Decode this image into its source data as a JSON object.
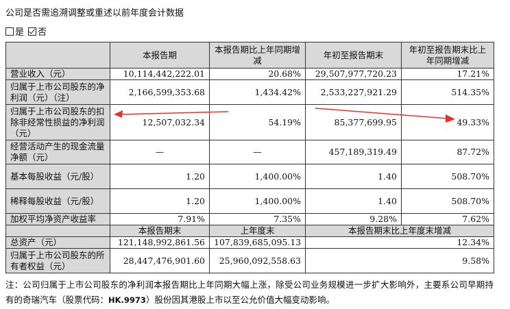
{
  "heading": "公司是否需追溯调整或重述以前年度会计数据",
  "options": {
    "yes_label": "是",
    "no_label": "否",
    "selected": "否"
  },
  "table1": {
    "headers": [
      "",
      "本报告期",
      "本报告期比上年同期增减",
      "年初至报告期末",
      "年初至报告期末比上年同期增减"
    ],
    "rows": [
      {
        "label": "营业收入（元）",
        "values": [
          "10,114,442,222.01",
          "20.68%",
          "29,507,977,720.23",
          "17.21%"
        ]
      },
      {
        "label": "归属于上市公司股东的净利润（元）（注）",
        "values": [
          "2,166,599,353.68",
          "1,434.42%",
          "2,533,227,921.29",
          "514.35%"
        ]
      },
      {
        "label": "归属于上市公司股东的扣除非经常性损益的净利润（元）",
        "values": [
          "12,507,032.34",
          "54.19%",
          "85,377,699.95",
          "49.33%"
        ]
      },
      {
        "label": "经营活动产生的现金流量净额（元）",
        "values": [
          "—",
          "—",
          "457,189,319.49",
          "87.72%"
        ]
      },
      {
        "label": "基本每股收益（元/股）",
        "values": [
          "1.20",
          "1,400.00%",
          "1.40",
          "508.70%"
        ]
      },
      {
        "label": "稀释每股收益（元/股）",
        "values": [
          "1.20",
          "1,400.00%",
          "1.40",
          "508.70%"
        ]
      },
      {
        "label": "加权平均净资产收益率",
        "values": [
          "7.91%",
          "7.35%",
          "9.28%",
          "7.62%"
        ]
      }
    ]
  },
  "table2": {
    "headers": [
      "",
      "本报告期末",
      "上年度末",
      "本报告期末比上年度末增减"
    ],
    "rows": [
      {
        "label": "总资产（元）",
        "values": [
          "121,148,992,861.56",
          "107,839,685,095.13",
          "12.34%"
        ]
      },
      {
        "label": "归属于上市公司股东的所有者权益（元）",
        "values": [
          "28,447,476,901.60",
          "25,960,092,558.63",
          "9.58%"
        ]
      }
    ]
  },
  "note": {
    "part1": "注：公司归属于上市公司股东的净利润本报告期比上年同期大幅上涨，除受公司业务规模进一步扩大影响外，主要系公司早期持有的奇瑞汽车（股票代码：",
    "code": "HK.9973",
    "part2": "）股份因其港股上市以至公允价值大幅变动影响。"
  },
  "annotation_color": "#e8312a"
}
